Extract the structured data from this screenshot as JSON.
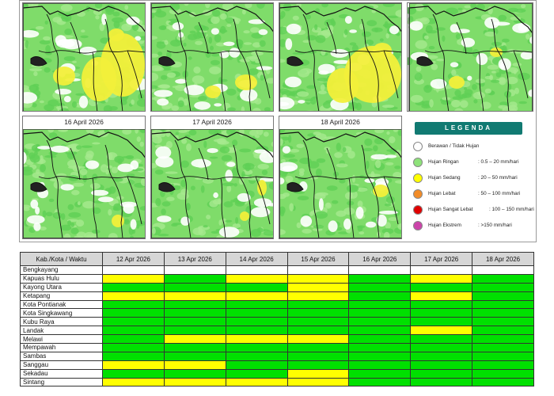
{
  "maps": [
    {
      "date": ""
    },
    {
      "date": ""
    },
    {
      "date": ""
    },
    {
      "date": ""
    },
    {
      "date": "16 April 2026"
    },
    {
      "date": "17 April 2026"
    },
    {
      "date": "18 April 2026"
    }
  ],
  "legend": {
    "title": "LEGENDA",
    "items": [
      {
        "label": "Berawan / Tidak Hujan",
        "range": "",
        "color": "#ffffff"
      },
      {
        "label": "Hujan Ringan",
        "range": ": 0.5 – 20 mm/hari",
        "color": "#8ee27a"
      },
      {
        "label": "Hujan Sedang",
        "range": ": 20 – 50 mm/hari",
        "color": "#ffff00"
      },
      {
        "label": "Hujan Lebat",
        "range": ": 50 – 100 mm/hari",
        "color": "#f28c28"
      },
      {
        "label": "Hujan Sangat Lebat",
        "range": ": 100 – 150 mm/hari",
        "color": "#e00000"
      },
      {
        "label": "Hujan Ekstrem",
        "range": ": >150 mm/hari",
        "color": "#cc44aa"
      }
    ]
  },
  "table": {
    "header": "Kab./Kota / Waktu",
    "dates": [
      "12 Apr 2026",
      "13 Apr 2026",
      "14 Apr 2026",
      "15 Apr 2026",
      "16 Apr 2026",
      "17 Apr 2026",
      "18 Apr 2026"
    ],
    "rows": [
      {
        "name": "Bengkayang",
        "levels": [
          "w",
          "w",
          "w",
          "w",
          "w",
          "w",
          "w"
        ]
      },
      {
        "name": "Kapuas Hulu",
        "levels": [
          "y",
          "g",
          "y",
          "y",
          "g",
          "y",
          "g"
        ]
      },
      {
        "name": "Kayong Utara",
        "levels": [
          "g",
          "g",
          "g",
          "y",
          "g",
          "g",
          "g"
        ]
      },
      {
        "name": "Ketapang",
        "levels": [
          "y",
          "y",
          "y",
          "y",
          "g",
          "y",
          "g"
        ]
      },
      {
        "name": "Kota Pontianak",
        "levels": [
          "g",
          "g",
          "g",
          "g",
          "g",
          "g",
          "g"
        ]
      },
      {
        "name": "Kota Singkawang",
        "levels": [
          "g",
          "g",
          "g",
          "g",
          "g",
          "g",
          "g"
        ]
      },
      {
        "name": "Kubu Raya",
        "levels": [
          "g",
          "g",
          "g",
          "g",
          "g",
          "g",
          "g"
        ]
      },
      {
        "name": "Landak",
        "levels": [
          "g",
          "g",
          "g",
          "g",
          "g",
          "y",
          "g"
        ]
      },
      {
        "name": "Melawi",
        "levels": [
          "g",
          "y",
          "y",
          "y",
          "g",
          "g",
          "g"
        ]
      },
      {
        "name": "Mempawah",
        "levels": [
          "g",
          "g",
          "g",
          "g",
          "g",
          "g",
          "g"
        ]
      },
      {
        "name": "Sambas",
        "levels": [
          "g",
          "g",
          "g",
          "g",
          "g",
          "g",
          "g"
        ]
      },
      {
        "name": "Sanggau",
        "levels": [
          "y",
          "y",
          "g",
          "g",
          "g",
          "g",
          "g"
        ]
      },
      {
        "name": "Sekadau",
        "levels": [
          "g",
          "g",
          "g",
          "y",
          "g",
          "g",
          "g"
        ]
      },
      {
        "name": "Sintang",
        "levels": [
          "y",
          "y",
          "y",
          "y",
          "g",
          "g",
          "g"
        ]
      }
    ]
  }
}
